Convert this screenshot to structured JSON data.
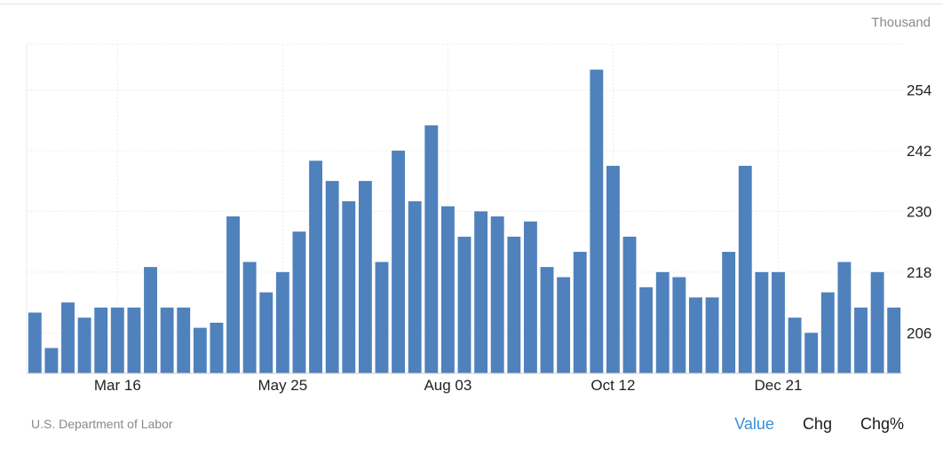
{
  "unit_label": "Thousand",
  "source": "U.S. Department of Labor",
  "tabs": [
    {
      "label": "Value",
      "active": true
    },
    {
      "label": "Chg",
      "active": false
    },
    {
      "label": "Chg%",
      "active": false
    }
  ],
  "colors": {
    "bar": "#4f81bd",
    "grid": "#ebebeb",
    "tick_text": "#222222",
    "active_tab": "#3a8fd6"
  },
  "chart_data": {
    "type": "bar",
    "title": "",
    "xlabel": "",
    "ylabel": "Thousand",
    "y_axis_position": "right",
    "ylim": [
      198,
      263
    ],
    "yticks": [
      206,
      218,
      230,
      242,
      254
    ],
    "xtick_labels": [
      {
        "index": 5,
        "label": "Mar 16"
      },
      {
        "index": 15,
        "label": "May 25"
      },
      {
        "index": 25,
        "label": "Aug 03"
      },
      {
        "index": 35,
        "label": "Oct 12"
      },
      {
        "index": 45,
        "label": "Dec 21"
      }
    ],
    "grid": true,
    "values": [
      210,
      203,
      212,
      209,
      211,
      211,
      211,
      219,
      211,
      211,
      207,
      208,
      229,
      220,
      214,
      218,
      226,
      240,
      236,
      232,
      236,
      220,
      242,
      232,
      247,
      231,
      225,
      230,
      229,
      225,
      228,
      219,
      217,
      222,
      258,
      239,
      225,
      215,
      218,
      217,
      213,
      213,
      222,
      239,
      218,
      218,
      209,
      206,
      214,
      220,
      211,
      218,
      211
    ]
  }
}
